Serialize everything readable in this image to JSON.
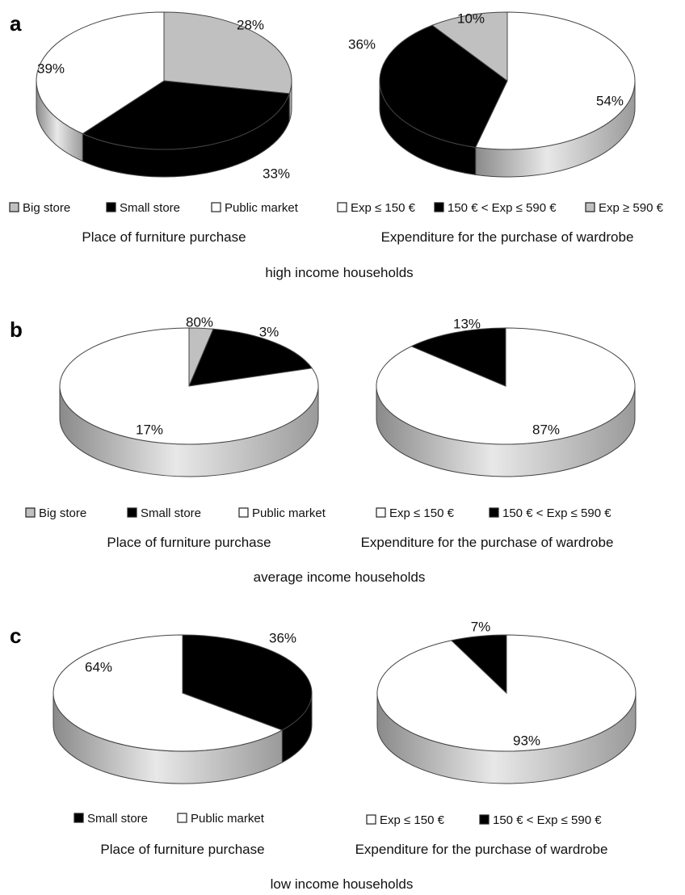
{
  "colors": {
    "big_store": "#c0c0c0",
    "small_store": "#000000",
    "public_market": "#ffffff",
    "exp_low": "#ffffff",
    "exp_mid": "#000000",
    "exp_high": "#c0c0c0",
    "outline": "#444444"
  },
  "chart_data": [
    {
      "type": "pie",
      "panel": "a",
      "group_caption": "high income households",
      "title": "Place of furniture purchase",
      "legend": [
        "Big store",
        "Small store",
        "Public market"
      ],
      "slices": [
        {
          "label": "Big store",
          "value": 28,
          "text": "28%"
        },
        {
          "label": "Small store",
          "value": 33,
          "text": "33%"
        },
        {
          "label": "Public market",
          "value": 39,
          "text": "39%"
        }
      ]
    },
    {
      "type": "pie",
      "panel": "a",
      "group_caption": "high income households",
      "title": "Expenditure for the purchase of wardrobe",
      "legend": [
        "Exp ≤ 150 €",
        "150 € < Exp ≤ 590 €",
        "Exp ≥ 590 €"
      ],
      "slices": [
        {
          "label": "Exp ≤ 150 €",
          "value": 54,
          "text": "54%"
        },
        {
          "label": "150 € < Exp ≤ 590 €",
          "value": 36,
          "text": "36%"
        },
        {
          "label": "Exp ≥ 590 €",
          "value": 10,
          "text": "10%"
        }
      ]
    },
    {
      "type": "pie",
      "panel": "b",
      "group_caption": "average income households",
      "title": "Place of furniture purchase",
      "legend": [
        "Big store",
        "Small store",
        "Public market"
      ],
      "slices": [
        {
          "label": "Big store",
          "value": 3,
          "text": "3%"
        },
        {
          "label": "Small store",
          "value": 17,
          "text": "17%"
        },
        {
          "label": "Public market",
          "value": 80,
          "text": "80%"
        }
      ]
    },
    {
      "type": "pie",
      "panel": "b",
      "group_caption": "average income households",
      "title": "Expenditure for the purchase of wardrobe",
      "legend": [
        "Exp ≤ 150 €",
        "150 € < Exp ≤ 590 €"
      ],
      "slices": [
        {
          "label": "Exp ≤ 150 €",
          "value": 87,
          "text": "87%"
        },
        {
          "label": "150 € < Exp ≤ 590 €",
          "value": 13,
          "text": "13%"
        }
      ]
    },
    {
      "type": "pie",
      "panel": "c",
      "group_caption": "low income households",
      "title": "Place of furniture purchase",
      "legend": [
        "Small store",
        "Public market"
      ],
      "slices": [
        {
          "label": "Small store",
          "value": 36,
          "text": "36%"
        },
        {
          "label": "Public market",
          "value": 64,
          "text": "64%"
        }
      ]
    },
    {
      "type": "pie",
      "panel": "c",
      "group_caption": "low income households",
      "title": "Expenditure for the purchase of wardrobe",
      "legend": [
        "Exp ≤ 150 €",
        "150 € < Exp ≤ 590 €"
      ],
      "slices": [
        {
          "label": "Exp ≤ 150 €",
          "value": 93,
          "text": "93%"
        },
        {
          "label": "150 € < Exp ≤ 590 €",
          "value": 7,
          "text": "7%"
        }
      ]
    }
  ]
}
